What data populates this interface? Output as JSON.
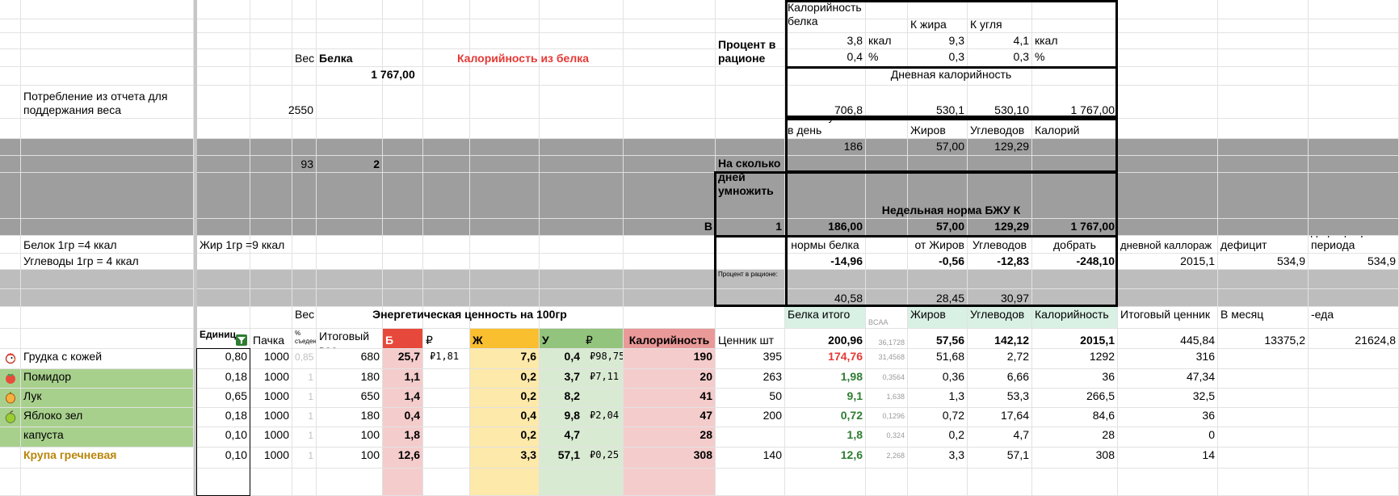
{
  "colors": {
    "red_text": "#e53935",
    "green_text": "#2e7d32",
    "orange_text": "#b8860b"
  },
  "header": {
    "ves_label": "Вес",
    "belka_label": "Белка",
    "cal_from_protein_label": "Калорийность из белка",
    "cal_from_protein_value": "1 767,00",
    "percent_label": "Процент в рационе",
    "consumption_label": "Потребление из отчета для поддержания веса",
    "weight_value": "2550",
    "w93": "93",
    "w2": "2"
  },
  "coef": {
    "c1_label": "Калорийность белка",
    "k_fat_label": "К жира",
    "k_carb_label": "К угля",
    "protein_k": "3,8",
    "fat_k": "9,3",
    "carb_k": "4,1",
    "kcal_unit": "ккал",
    "protein_p": "0,4",
    "fat_p": "0,3",
    "carb_p": "0,3",
    "pct_unit": "%"
  },
  "daily": {
    "title": "Дневная калорийность",
    "protein": "706,8",
    "fat": "530,1",
    "carb": "530,10",
    "total": "1 767,00",
    "need_protein_label": "Белка нужно в день",
    "fats_label": "Жиров",
    "carbs_label": "Углеводов",
    "cal_label": "Калорий",
    "need_protein": "186",
    "need_fat": "57,00",
    "need_carb": "129,29"
  },
  "weekly": {
    "multiply_label": "На сколько дней умножить",
    "norm_label": "Недельная норма БЖУ К",
    "b_label": "В",
    "days": "1",
    "protein": "186,00",
    "fat": "57,00",
    "carb": "129,29",
    "cal": "1 767,00"
  },
  "remain": {
    "protein_note": "Белок 1гр =4 ккал",
    "fat_note": "Жир 1гр =9 ккал",
    "carb_note": "Углеводы 1гр = 4 ккал",
    "rem_protein_label": "Остаток от нормы белка",
    "rem_fat_label": "от Жиров",
    "rem_carb_label": "от Углеводов",
    "left_label": "Осталось добрать",
    "actual_daily_label": "Фактический дневной каллораж",
    "actual_deficit_label": "Фактически дефицит",
    "total_deficit_label": "Общий дефицит расч. периода",
    "rem_protein": "-14,96",
    "rem_fat": "-0,56",
    "rem_carb": "-12,83",
    "left": "-248,10",
    "actual_daily": "2015,1",
    "actual_deficit": "534,9",
    "total_deficit": "534,9"
  },
  "percent_row": {
    "label": "Процент в рационе:",
    "protein": "40,58",
    "fat": "28,45",
    "carb": "30,97"
  },
  "table_head": {
    "ves": "Вес",
    "energy": "Энергетическая ценность на 100гр",
    "protein_total": "Белка итого",
    "bcaa": "BCAA",
    "fats": "Жиров",
    "carbs": "Углеводов",
    "calories": "Калорийность",
    "final_price": "Итоговый ценник",
    "per_month": "В месяц",
    "eda": "-еда",
    "unit": "Единиц",
    "pack": "Пачка",
    "pct_small": "% съеденного",
    "final_weight": "Итоговый вес",
    "b": "Б",
    "rub": "₽",
    "zh": "Ж",
    "u": "У",
    "cal": "Калорийность",
    "price_pc": "Ценник шт",
    "sum_protein": "200,96",
    "sum_bcaa": "36,1728",
    "sum_fat": "57,56",
    "sum_carb": "142,12",
    "sum_cal": "2015,1",
    "sum_price": "445,84",
    "sum_month": "13375,2",
    "sum_eda": "21624,8"
  },
  "rows": [
    {
      "icon": "chicken-icon",
      "name": "Грудка с кожей",
      "unit": "0,80",
      "pack": "1000",
      "pct": "0,85",
      "weight": "680",
      "b": "25,7",
      "rb": "₽1,81",
      "zh": "7,6",
      "u": "0,4",
      "ru": "₽98,75",
      "cal": "190",
      "price": "395",
      "pt": "174,76",
      "bcaa": "31,4568",
      "f": "51,68",
      "c": "2,72",
      "k": "1292",
      "fp": "316"
    },
    {
      "icon": "tomato-icon",
      "name": "Помидор",
      "unit": "0,18",
      "pack": "1000",
      "pct": "1",
      "weight": "180",
      "b": "1,1",
      "rb": "",
      "zh": "0,2",
      "u": "3,7",
      "ru": "₽7,11",
      "cal": "20",
      "price": "263",
      "pt": "1,98",
      "bcaa": "0,3564",
      "f": "0,36",
      "c": "6,66",
      "k": "36",
      "fp": "47,34"
    },
    {
      "icon": "onion-icon",
      "name": "Лук",
      "unit": "0,65",
      "pack": "1000",
      "pct": "1",
      "weight": "650",
      "b": "1,4",
      "rb": "",
      "zh": "0,2",
      "u": "8,2",
      "ru": "",
      "cal": "41",
      "price": "50",
      "pt": "9,1",
      "bcaa": "1,638",
      "f": "1,3",
      "c": "53,3",
      "k": "266,5",
      "fp": "32,5"
    },
    {
      "icon": "apple-icon",
      "name": "Яблоко зел",
      "unit": "0,18",
      "pack": "1000",
      "pct": "1",
      "weight": "180",
      "b": "0,4",
      "rb": "",
      "zh": "0,4",
      "u": "9,8",
      "ru": "₽2,04",
      "cal": "47",
      "price": "200",
      "pt": "0,72",
      "bcaa": "0,1296",
      "f": "0,72",
      "c": "17,64",
      "k": "84,6",
      "fp": "36"
    },
    {
      "icon": "",
      "name": "капуста",
      "unit": "0,10",
      "pack": "1000",
      "pct": "1",
      "weight": "100",
      "b": "1,8",
      "rb": "",
      "zh": "0,2",
      "u": "4,7",
      "ru": "",
      "cal": "28",
      "price": "",
      "pt": "1,8",
      "bcaa": "0,324",
      "f": "0,2",
      "c": "4,7",
      "k": "28",
      "fp": "0"
    },
    {
      "icon": "",
      "name": "Крупа гречневая",
      "unit": "0,10",
      "pack": "1000",
      "pct": "1",
      "weight": "100",
      "b": "12,6",
      "rb": "",
      "zh": "3,3",
      "u": "57,1",
      "ru": "₽0,25",
      "cal": "308",
      "price": "140",
      "pt": "12,6",
      "bcaa": "2,268",
      "f": "3,3",
      "c": "57,1",
      "k": "308",
      "fp": "14"
    }
  ]
}
